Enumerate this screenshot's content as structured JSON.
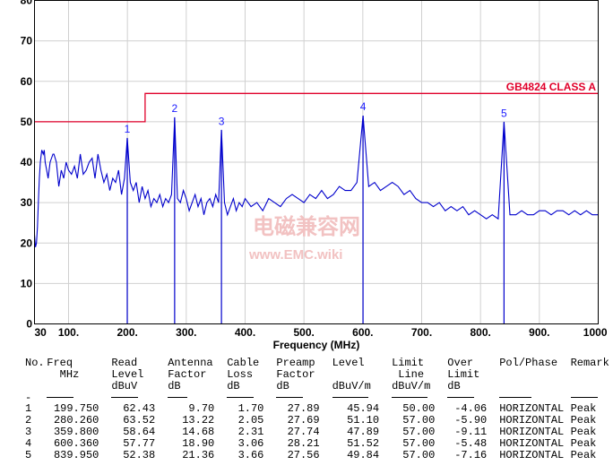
{
  "chart_data": {
    "type": "line",
    "xlabel": "Frequency (MHz)",
    "xlim": [
      30,
      1000
    ],
    "ylim": [
      0,
      80
    ],
    "x_ticks": [
      "30",
      "100.",
      "200.",
      "300.",
      "400.",
      "500.",
      "600.",
      "700.",
      "800.",
      "900.",
      "1000"
    ],
    "y_ticks": [
      "0",
      "10",
      "20",
      "30",
      "40",
      "50",
      "60",
      "70",
      "80"
    ],
    "grid": true,
    "limit_line": {
      "name": "GB4824 CLASS A",
      "segments": [
        {
          "x": [
            30,
            230
          ],
          "y": 50
        },
        {
          "x": [
            230,
            1000
          ],
          "y": 57
        }
      ]
    },
    "series": [
      {
        "x": [
          30,
          32,
          34,
          36,
          38,
          40,
          42,
          45,
          48,
          50,
          52,
          55,
          58,
          60,
          62,
          65,
          68,
          70,
          75,
          80,
          85,
          90,
          95,
          100,
          105,
          110,
          115,
          120,
          125,
          130,
          135,
          140,
          145,
          150,
          155,
          160,
          165,
          170,
          175,
          180,
          185,
          190,
          195,
          199.75,
          205,
          210,
          215,
          220,
          225,
          230,
          235,
          240,
          245,
          250,
          255,
          260,
          265,
          270,
          275,
          280.26,
          285,
          290,
          295,
          300,
          305,
          310,
          315,
          320,
          325,
          330,
          335,
          340,
          345,
          350,
          355,
          359.8,
          365,
          370,
          375,
          380,
          385,
          390,
          395,
          400,
          410,
          420,
          430,
          440,
          450,
          460,
          470,
          480,
          490,
          500,
          510,
          520,
          530,
          540,
          550,
          560,
          570,
          580,
          590,
          600.36,
          610,
          620,
          630,
          640,
          650,
          660,
          670,
          680,
          690,
          700,
          710,
          720,
          730,
          740,
          750,
          760,
          770,
          780,
          790,
          800,
          810,
          820,
          830,
          839.95,
          850,
          860,
          870,
          880,
          890,
          900,
          910,
          920,
          930,
          940,
          950,
          960,
          970,
          980,
          990,
          1000
        ],
        "y": [
          22,
          19,
          20,
          24,
          30,
          36,
          40,
          43,
          42,
          43,
          40,
          38,
          36,
          38,
          40,
          41,
          42,
          42,
          40,
          34,
          38,
          36,
          40,
          38,
          37,
          39,
          36,
          42,
          37,
          38,
          40,
          41,
          36,
          42,
          38,
          35,
          37,
          33,
          36,
          35,
          38,
          32,
          36,
          46,
          35,
          33,
          35,
          30,
          34,
          31,
          33,
          29,
          31,
          30,
          32,
          29,
          31,
          30,
          32,
          51,
          31,
          30,
          33,
          31,
          28,
          30,
          32,
          29,
          31,
          27,
          30,
          31,
          29,
          32,
          30,
          48,
          30,
          27,
          29,
          31,
          28,
          30,
          29,
          31,
          29,
          30,
          28,
          31,
          30,
          29,
          31,
          32,
          31,
          30,
          32,
          31,
          33,
          31,
          32,
          34,
          33,
          33,
          35,
          51.5,
          34,
          35,
          33,
          34,
          35,
          34,
          32,
          33,
          31,
          30,
          30,
          29,
          30,
          28,
          29,
          28,
          29,
          27,
          28,
          27,
          26,
          27,
          26,
          50,
          27,
          27,
          28,
          27,
          27,
          28,
          28,
          27,
          28,
          28,
          27,
          28,
          27,
          28,
          27,
          27
        ]
      }
    ],
    "markers": [
      {
        "label": "1",
        "x": 199.75,
        "y": 45.94
      },
      {
        "label": "2",
        "x": 280.26,
        "y": 51.1
      },
      {
        "label": "3",
        "x": 359.8,
        "y": 47.89
      },
      {
        "label": "4",
        "x": 600.36,
        "y": 51.52
      },
      {
        "label": "5",
        "x": 839.95,
        "y": 49.84
      }
    ]
  },
  "watermark": {
    "cn": "电磁兼容网",
    "en": "www.EMC.wiki"
  },
  "table": {
    "headers": [
      {
        "l1": "No.",
        "l2": ""
      },
      {
        "l1": "Freq",
        "l2": "  MHz"
      },
      {
        "l1": "Read",
        "l2": "Level",
        "l3": "dBuV"
      },
      {
        "l1": "Antenna",
        "l2": "Factor",
        "l3": "dB"
      },
      {
        "l1": "Cable",
        "l2": "Loss",
        "l3": "dB"
      },
      {
        "l1": "Preamp",
        "l2": "Factor",
        "l3": "dB"
      },
      {
        "l1": "Level",
        "l2": "",
        "l3": "dBuV/m"
      },
      {
        "l1": "Limit",
        "l2": " Line",
        "l3": "dBuV/m"
      },
      {
        "l1": "Over",
        "l2": "Limit",
        "l3": "dB"
      },
      {
        "l1": "Pol/Phase",
        "l2": ""
      },
      {
        "l1": "Remark",
        "l2": ""
      }
    ],
    "rows": [
      [
        "1",
        "199.750",
        "62.43",
        "9.70",
        "1.70",
        "27.89",
        "45.94",
        "50.00",
        "-4.06",
        "HORIZONTAL",
        "Peak"
      ],
      [
        "2",
        "280.260",
        "63.52",
        "13.22",
        "2.05",
        "27.69",
        "51.10",
        "57.00",
        "-5.90",
        "HORIZONTAL",
        "Peak"
      ],
      [
        "3",
        "359.800",
        "58.64",
        "14.68",
        "2.31",
        "27.74",
        "47.89",
        "57.00",
        "-9.11",
        "HORIZONTAL",
        "Peak"
      ],
      [
        "4",
        "600.360",
        "57.77",
        "18.90",
        "3.06",
        "28.21",
        "51.52",
        "57.00",
        "-5.48",
        "HORIZONTAL",
        "Peak"
      ],
      [
        "5",
        "839.950",
        "52.38",
        "21.36",
        "3.66",
        "27.56",
        "49.84",
        "57.00",
        "-7.16",
        "HORIZONTAL",
        "Peak"
      ]
    ]
  },
  "colors": {
    "trace": "#0000cc",
    "limit": "#e0002a",
    "marker": "#1a1aff",
    "grid": "#d0d0d0"
  }
}
